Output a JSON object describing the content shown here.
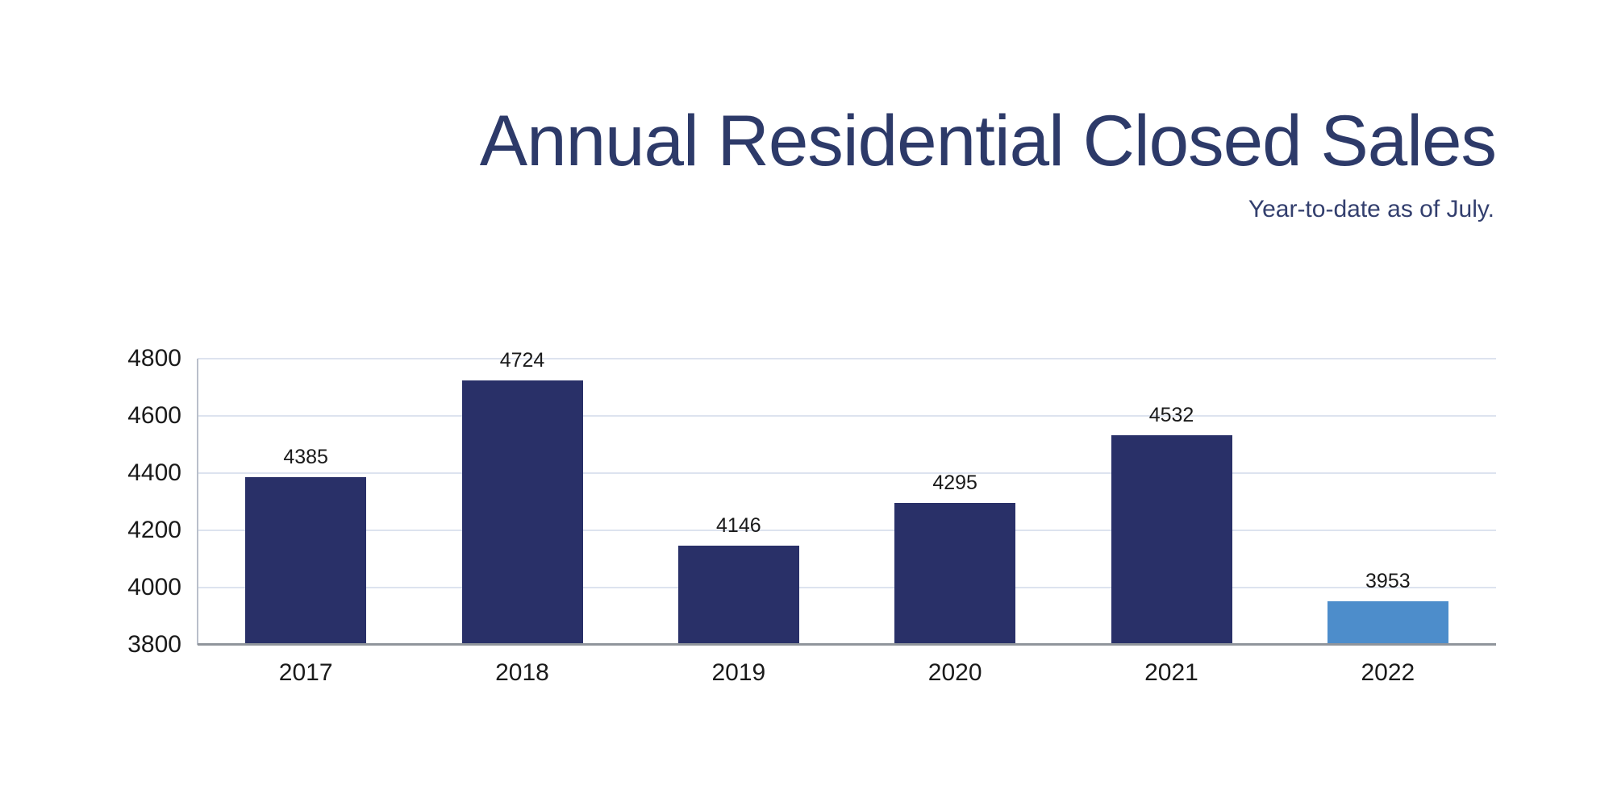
{
  "header": {
    "title": "Annual Residential Closed Sales",
    "subtitle": "Year-to-date as of July."
  },
  "chart_data": {
    "type": "bar",
    "title": "Annual Residential Closed Sales",
    "subtitle": "Year-to-date as of July.",
    "categories": [
      "2017",
      "2018",
      "2019",
      "2020",
      "2021",
      "2022"
    ],
    "values": [
      4385,
      4724,
      4146,
      4295,
      4532,
      3953
    ],
    "data_labels": [
      "4385",
      "4724",
      "4146",
      "4295",
      "4532",
      "3953"
    ],
    "xlabel": "",
    "ylabel": "",
    "ylim": [
      3800,
      4800
    ],
    "yticks": [
      3800,
      4000,
      4200,
      4400,
      4600,
      4800
    ],
    "grid": true,
    "legend": false,
    "bar_colors": [
      "#293068",
      "#293068",
      "#293068",
      "#293068",
      "#293068",
      "#4d8dcb"
    ],
    "colors": {
      "bar_default": "#293068",
      "bar_highlight": "#4d8dcb",
      "title_text": "#2d3a69",
      "subtitle_text": "#333f6e",
      "label_text": "#1a1a1a",
      "gridline": "#dde3ef",
      "axis_line": "#b9bfca",
      "baseline": "#90959c"
    }
  }
}
